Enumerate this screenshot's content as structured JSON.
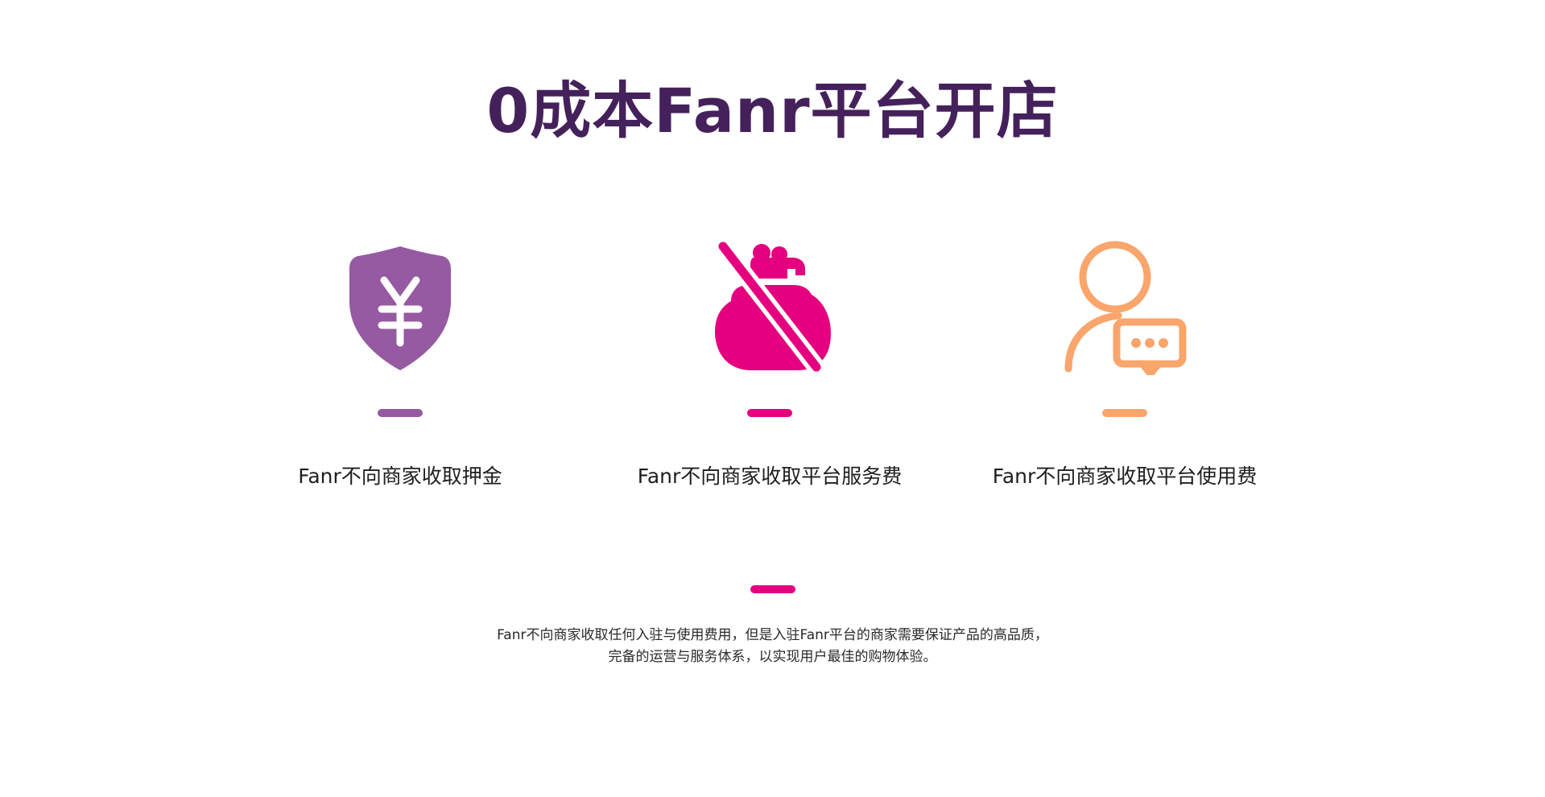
{
  "title": "0成本Fanr平台开店",
  "colors": {
    "title": "#45215b",
    "purple": "#955aa2",
    "magenta": "#e5007f",
    "orange": "#f9a56b",
    "text": "#1e1e1e"
  },
  "features": [
    {
      "icon": "yuan-shield-icon",
      "color": "#955aa2",
      "label": "Fanr不向商家收取押金"
    },
    {
      "icon": "no-money-bag-icon",
      "color": "#e5007f",
      "label": "Fanr不向商家收取平台服务费"
    },
    {
      "icon": "user-chat-icon",
      "color": "#f9a56b",
      "label": "Fanr不向商家收取平台使用费"
    }
  ],
  "description": {
    "line1": "Fanr不向商家收取任何入驻与使用费用，但是入驻Fanr平台的商家需要保证产品的高品质，",
    "line2": "完备的运营与服务体系，以实现用户最佳的购物体验。"
  }
}
